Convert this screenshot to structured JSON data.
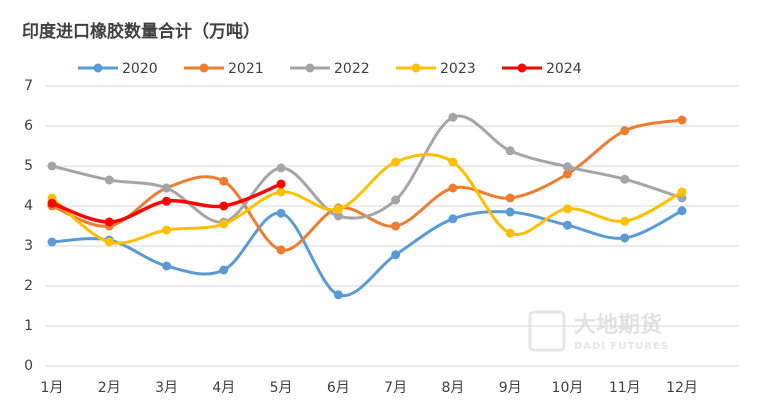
{
  "chart_data": {
    "type": "line",
    "title": "印度进口橡胶数量合计（万吨）",
    "watermark": [
      "大地期货",
      "DADI FUTURES"
    ],
    "categories": [
      "1月",
      "2月",
      "3月",
      "4月",
      "5月",
      "6月",
      "7月",
      "8月",
      "9月",
      "10月",
      "11月",
      "12月"
    ],
    "series": [
      {
        "name": "2020",
        "color": "#5b9bd5",
        "values": [
          3.1,
          3.15,
          2.5,
          2.4,
          3.82,
          1.78,
          2.78,
          3.68,
          3.85,
          3.52,
          3.2,
          3.88
        ]
      },
      {
        "name": "2021",
        "color": "#ed7d31",
        "values": [
          4.0,
          3.5,
          4.45,
          4.62,
          2.9,
          3.95,
          3.5,
          4.45,
          4.2,
          4.8,
          5.88,
          6.15
        ]
      },
      {
        "name": "2022",
        "color": "#a5a5a5",
        "values": [
          5.0,
          4.65,
          4.45,
          3.6,
          4.95,
          3.75,
          4.15,
          6.22,
          5.38,
          4.98,
          4.67,
          4.2
        ]
      },
      {
        "name": "2023",
        "color": "#ffc000",
        "values": [
          4.2,
          3.1,
          3.4,
          3.55,
          4.35,
          3.92,
          5.1,
          5.1,
          3.32,
          3.93,
          3.62,
          4.35
        ]
      },
      {
        "name": "2024",
        "color": "#ff0000",
        "values": [
          4.07,
          3.6,
          4.12,
          4.0,
          4.55,
          null,
          null,
          null,
          null,
          null,
          null,
          null
        ]
      }
    ],
    "ylim": [
      0,
      7
    ],
    "yticks": [
      0,
      1,
      2,
      3,
      4,
      5,
      6,
      7
    ],
    "grid": true,
    "legend": "top"
  }
}
